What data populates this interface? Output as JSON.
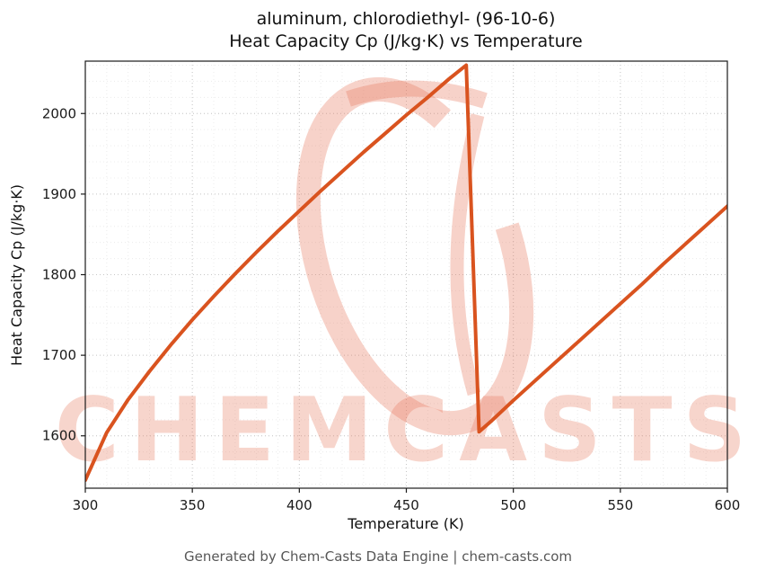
{
  "title_line1": "aluminum, chlorodiethyl- (96-10-6)",
  "title_line2": "Heat Capacity Cp (J/kg·K) vs Temperature",
  "footer": "Generated by Chem-Casts Data Engine | chem-casts.com",
  "watermark": {
    "text": "CHEMCASTS",
    "color": "#e8765a",
    "text_opacity": 0.3,
    "logo_opacity": 0.33
  },
  "chart_data": {
    "type": "line",
    "title": "aluminum, chlorodiethyl- (96-10-6) — Heat Capacity Cp (J/kg·K) vs Temperature",
    "xlabel": "Temperature (K)",
    "ylabel": "Heat Capacity Cp (J/kg·K)",
    "xlim": [
      300,
      600
    ],
    "ylim": [
      1535,
      2065
    ],
    "x_ticks": [
      300,
      350,
      400,
      450,
      500,
      550,
      600
    ],
    "y_ticks": [
      1600,
      1700,
      1800,
      1900,
      2000
    ],
    "x_minor_step": 10,
    "y_minor_step": 20,
    "grid": true,
    "legend": "none",
    "line_color": "#d9531f",
    "line_width": 4,
    "series": [
      {
        "name": "Heat Capacity Cp",
        "x": [
          300,
          310,
          320,
          330,
          340,
          350,
          360,
          370,
          380,
          390,
          400,
          410,
          420,
          430,
          440,
          450,
          460,
          470,
          478,
          484,
          490,
          500,
          510,
          520,
          530,
          540,
          550,
          560,
          570,
          580,
          590,
          600
        ],
        "y": [
          1545,
          1604,
          1645,
          1680,
          1713,
          1744,
          1773,
          1801,
          1828,
          1854,
          1879,
          1904,
          1928,
          1952,
          1975,
          1998,
          2020,
          2043,
          2060,
          1605,
          1619,
          1644,
          1668,
          1692,
          1716,
          1740,
          1764,
          1788,
          1813,
          1837,
          1861,
          1885
        ]
      }
    ]
  }
}
